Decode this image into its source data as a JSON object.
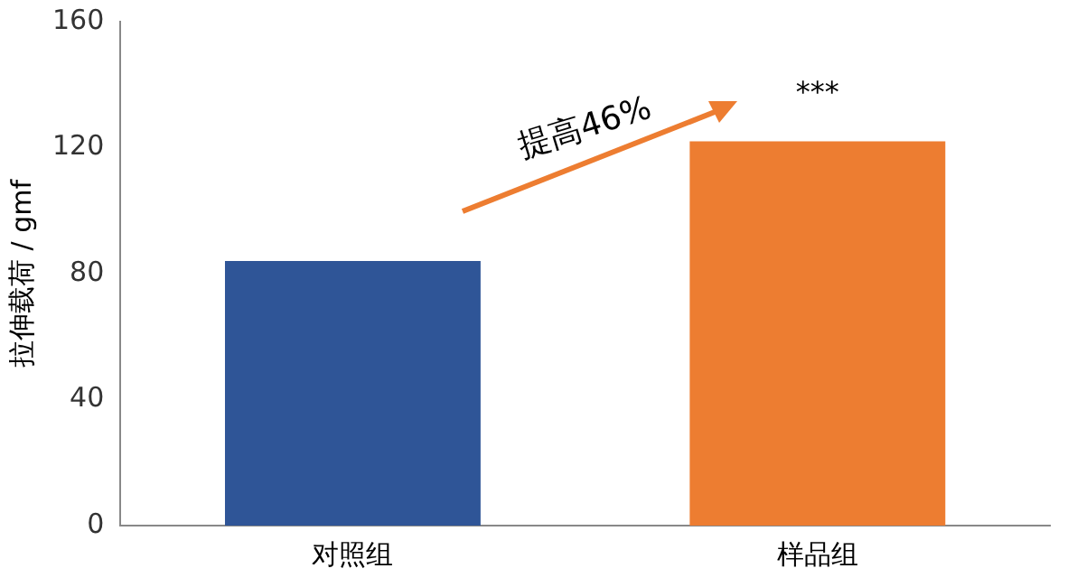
{
  "chart_data": {
    "type": "bar",
    "ylabel": "拉伸载荷 / gmf",
    "categories": [
      "对照组",
      "样品组"
    ],
    "values": [
      84,
      122
    ],
    "colors": [
      "#2f5597",
      "#ed7d31"
    ],
    "ylim": [
      0,
      160
    ],
    "yticks": [
      0,
      40,
      80,
      120,
      160
    ],
    "grid": false,
    "legend": false,
    "annotations": [
      "提高46%",
      {
        "text": "***",
        "x": "样品组",
        "y": 122
      }
    ]
  }
}
